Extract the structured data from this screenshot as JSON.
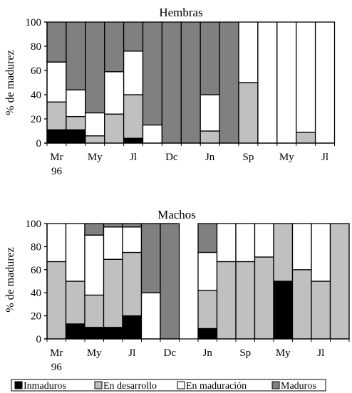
{
  "legend": [
    {
      "label": "Inmaduros",
      "color": "#000000"
    },
    {
      "label": "En desarrollo",
      "color": "#c0c0c0"
    },
    {
      "label": "En maduración",
      "color": "#ffffff"
    },
    {
      "label": "Maduros",
      "color": "#808080"
    }
  ],
  "chart_data": [
    {
      "type": "bar",
      "stacked": true,
      "title": "Hembras",
      "ylabel": "% de madurez",
      "ylim": [
        0,
        100
      ],
      "yticks": [
        0,
        20,
        40,
        60,
        80,
        100
      ],
      "grid": false,
      "x_tick_labels": [
        {
          "label": "Mr",
          "sub": "96",
          "at": 0
        },
        {
          "label": "My",
          "at": 2
        },
        {
          "label": "Jl",
          "at": 4
        },
        {
          "label": "Dc",
          "at": 6
        },
        {
          "label": "Jn",
          "at": 8
        },
        {
          "label": "Sp",
          "at": 10
        },
        {
          "label": "My",
          "at": 12
        },
        {
          "label": "Jl",
          "at": 14
        }
      ],
      "bars": [
        {
          "inmaduros": 11,
          "desarrollo": 23,
          "maduracion": 33,
          "maduros": 33
        },
        {
          "inmaduros": 11,
          "desarrollo": 11,
          "maduracion": 22,
          "maduros": 56
        },
        {
          "inmaduros": 0,
          "desarrollo": 6,
          "maduracion": 19,
          "maduros": 75
        },
        {
          "inmaduros": 0,
          "desarrollo": 24,
          "maduracion": 35,
          "maduros": 41
        },
        {
          "inmaduros": 4,
          "desarrollo": 36,
          "maduracion": 36,
          "maduros": 24
        },
        {
          "inmaduros": 0,
          "desarrollo": 0,
          "maduracion": 15,
          "maduros": 85
        },
        {
          "inmaduros": 0,
          "desarrollo": 0,
          "maduracion": 0,
          "maduros": 100
        },
        {
          "inmaduros": 0,
          "desarrollo": 0,
          "maduracion": 0,
          "maduros": 100
        },
        {
          "inmaduros": 0,
          "desarrollo": 10,
          "maduracion": 30,
          "maduros": 60
        },
        {
          "inmaduros": 0,
          "desarrollo": 0,
          "maduracion": 0,
          "maduros": 100
        },
        {
          "inmaduros": 0,
          "desarrollo": 50,
          "maduracion": 50,
          "maduros": 0
        },
        {
          "inmaduros": 0,
          "desarrollo": 0,
          "maduracion": 100,
          "maduros": 0
        },
        {
          "inmaduros": 0,
          "desarrollo": 0,
          "maduracion": 100,
          "maduros": 0
        },
        {
          "inmaduros": 0,
          "desarrollo": 9,
          "maduracion": 91,
          "maduros": 0
        },
        {
          "inmaduros": 0,
          "desarrollo": 0,
          "maduracion": 100,
          "maduros": 0
        }
      ]
    },
    {
      "type": "bar",
      "stacked": true,
      "title": "Machos",
      "ylabel": "% de madurez",
      "ylim": [
        0,
        100
      ],
      "yticks": [
        0,
        20,
        40,
        60,
        80,
        100
      ],
      "grid": false,
      "x_tick_labels": [
        {
          "label": "Mr",
          "sub": "96",
          "at": 0
        },
        {
          "label": "My",
          "at": 2
        },
        {
          "label": "Jl",
          "at": 4
        },
        {
          "label": "Dc",
          "at": 6
        },
        {
          "label": "Jn",
          "at": 8
        },
        {
          "label": "Sp",
          "at": 10
        },
        {
          "label": "My",
          "at": 12
        },
        {
          "label": "Jl",
          "at": 14
        }
      ],
      "bars": [
        {
          "inmaduros": 0,
          "desarrollo": 67,
          "maduracion": 33,
          "maduros": 0
        },
        {
          "inmaduros": 13,
          "desarrollo": 37,
          "maduracion": 50,
          "maduros": 0
        },
        {
          "inmaduros": 10,
          "desarrollo": 28,
          "maduracion": 52,
          "maduros": 10
        },
        {
          "inmaduros": 10,
          "desarrollo": 59,
          "maduracion": 28,
          "maduros": 3
        },
        {
          "inmaduros": 20,
          "desarrollo": 55,
          "maduracion": 22,
          "maduros": 3
        },
        {
          "inmaduros": 0,
          "desarrollo": 0,
          "maduracion": 40,
          "maduros": 60
        },
        {
          "inmaduros": 0,
          "desarrollo": 0,
          "maduracion": 0,
          "maduros": 100
        },
        null,
        {
          "inmaduros": 9,
          "desarrollo": 33,
          "maduracion": 33,
          "maduros": 25
        },
        {
          "inmaduros": 0,
          "desarrollo": 67,
          "maduracion": 33,
          "maduros": 0
        },
        {
          "inmaduros": 0,
          "desarrollo": 67,
          "maduracion": 33,
          "maduros": 0
        },
        {
          "inmaduros": 0,
          "desarrollo": 71,
          "maduracion": 29,
          "maduros": 0
        },
        {
          "inmaduros": 50,
          "desarrollo": 50,
          "maduracion": 0,
          "maduros": 0
        },
        {
          "inmaduros": 0,
          "desarrollo": 60,
          "maduracion": 40,
          "maduros": 0
        },
        {
          "inmaduros": 0,
          "desarrollo": 50,
          "maduracion": 50,
          "maduros": 0
        },
        {
          "inmaduros": 0,
          "desarrollo": 100,
          "maduracion": 0,
          "maduros": 0
        }
      ]
    }
  ]
}
